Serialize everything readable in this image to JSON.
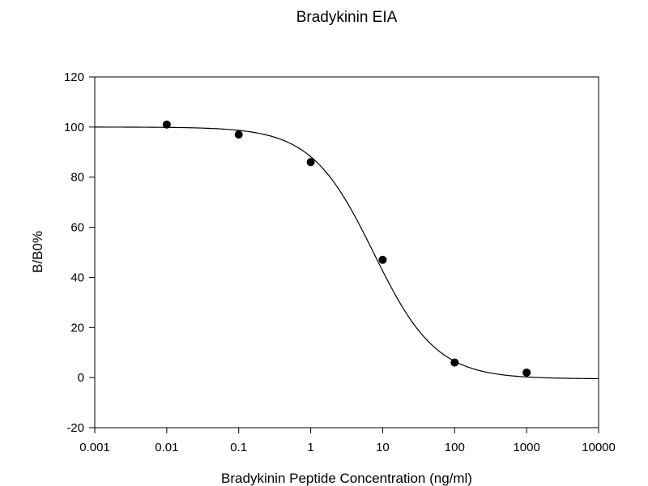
{
  "chart_data": {
    "type": "scatter",
    "title": "Bradykinin EIA",
    "xlabel": "Bradykinin Peptide Concentration (ng/ml)",
    "ylabel": "B/B0%",
    "x_scale": "log",
    "xlim": [
      0.001,
      10000
    ],
    "ylim": [
      -20,
      120
    ],
    "x_ticks": [
      0.001,
      0.01,
      0.1,
      1,
      10,
      100,
      1000,
      10000
    ],
    "x_tick_labels": [
      "0.001",
      "0.01",
      "0.1",
      "1",
      "10",
      "100",
      "1000",
      "10000"
    ],
    "y_ticks": [
      -20,
      0,
      20,
      40,
      60,
      80,
      100,
      120
    ],
    "y_tick_labels": [
      "-20",
      "0",
      "20",
      "40",
      "60",
      "80",
      "100",
      "120"
    ],
    "grid": false,
    "legend": "none",
    "series": [
      {
        "points": [
          {
            "x": 0.01,
            "y": 101
          },
          {
            "x": 0.1,
            "y": 97
          },
          {
            "x": 1,
            "y": 86
          },
          {
            "x": 10,
            "y": 47
          },
          {
            "x": 100,
            "y": 6
          },
          {
            "x": 1000,
            "y": 2
          }
        ]
      }
    ],
    "fit_curve": {
      "type": "4PL",
      "top": 100,
      "bottom": -0.5,
      "ec50": 7.5,
      "hill": 1.0
    },
    "colors": {
      "marker": "#000000",
      "line": "#000000",
      "axis": "#000000"
    }
  }
}
